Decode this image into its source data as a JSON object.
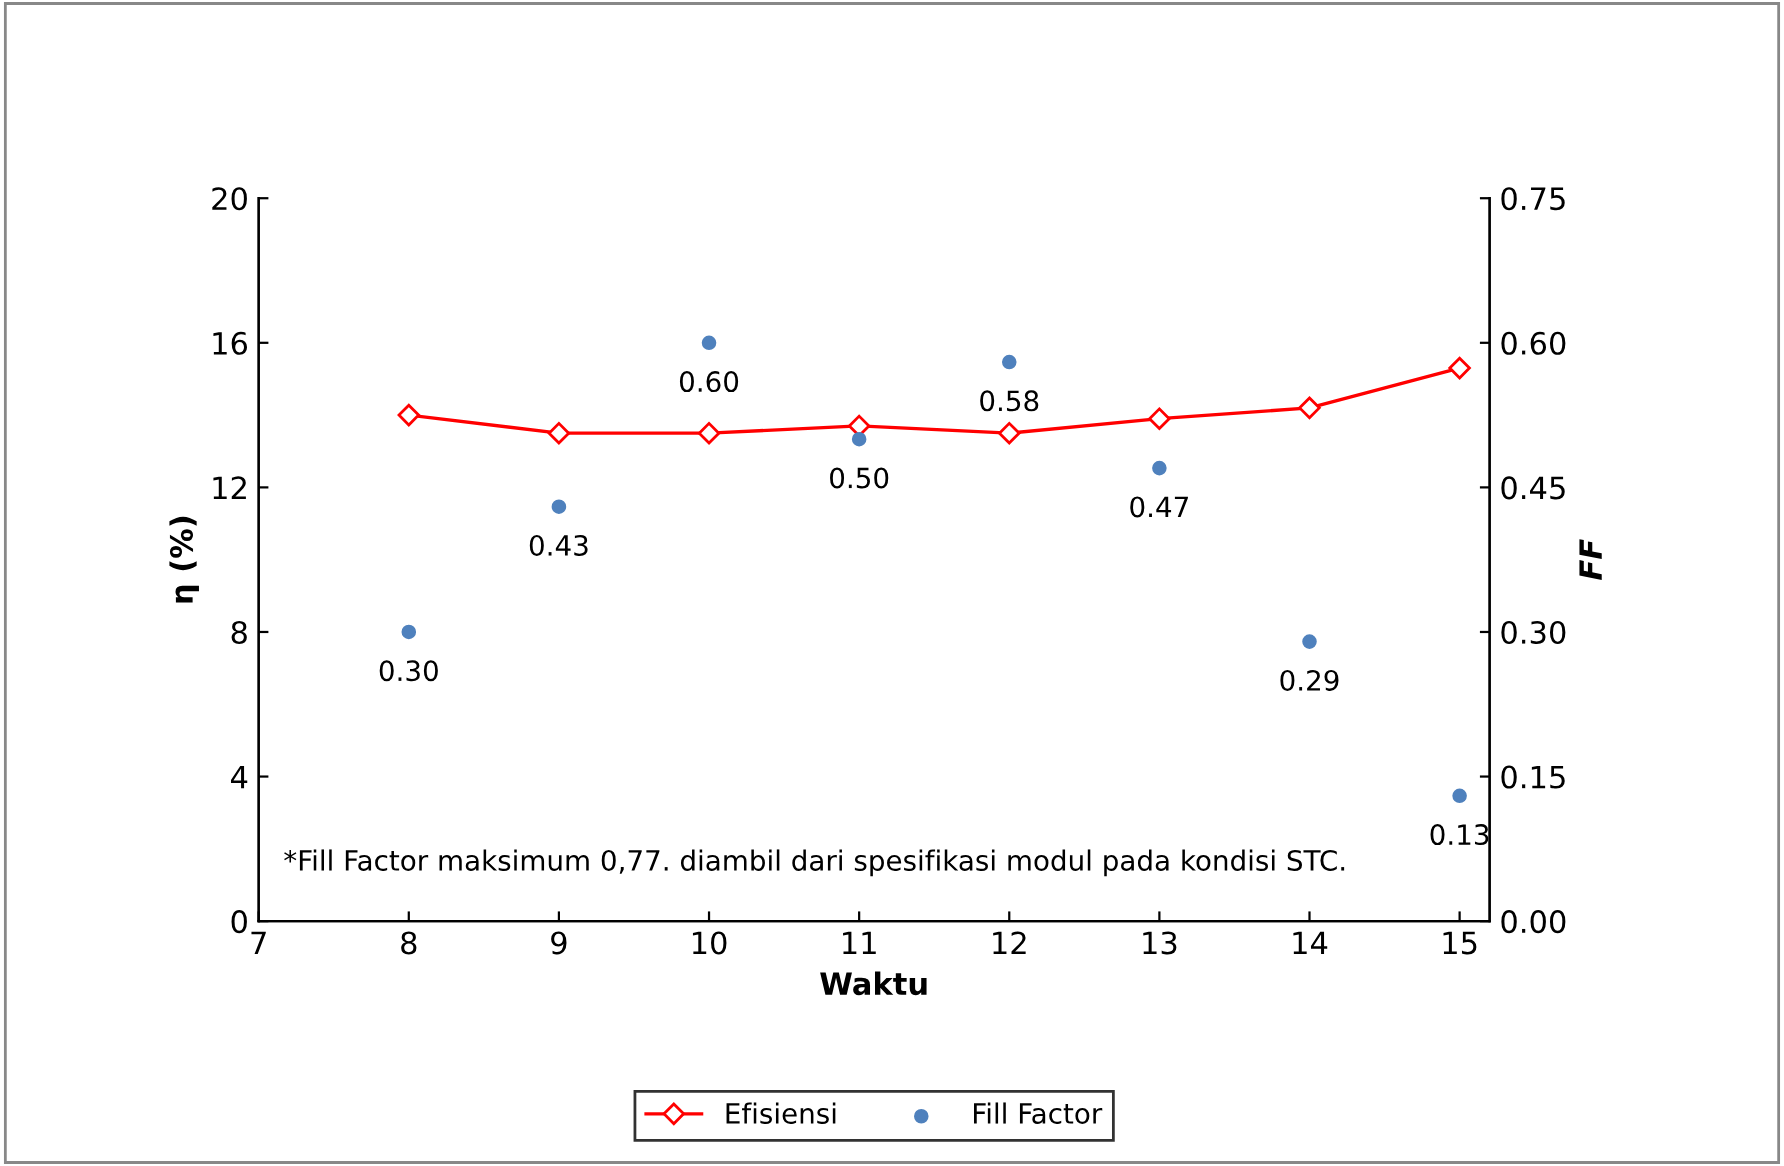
{
  "chart_data": {
    "type": "line",
    "xlabel": "Waktu",
    "ylabel": "η (%)",
    "y2label": "FF",
    "x": [
      8,
      9,
      10,
      11,
      12,
      13,
      14,
      15
    ],
    "xlim": [
      7,
      15.2
    ],
    "xticks": [
      7,
      8,
      9,
      10,
      11,
      12,
      13,
      14,
      15
    ],
    "ylim": [
      0,
      20
    ],
    "yticks": [
      0,
      4,
      8,
      12,
      16,
      20
    ],
    "y2lim": [
      0,
      0.75
    ],
    "y2ticks": [
      {
        "value": 0,
        "label": "0.00"
      },
      {
        "value": 0.15,
        "label": "0.15"
      },
      {
        "value": 0.3,
        "label": "0.30"
      },
      {
        "value": 0.45,
        "label": "0.45"
      },
      {
        "value": 0.6,
        "label": "0.60"
      },
      {
        "value": 0.75,
        "label": "0.75"
      }
    ],
    "series": [
      {
        "name": "Efisiensi",
        "color": "#ff0000",
        "marker": "diamond",
        "values": [
          14.0,
          13.5,
          13.5,
          13.7,
          13.5,
          13.9,
          14.2,
          15.3
        ]
      },
      {
        "name": "Fill Factor",
        "type": "scatter",
        "axis": "y2",
        "color": "#4f81bd",
        "marker": "circle",
        "values": [
          0.3,
          0.43,
          0.6,
          0.5,
          0.58,
          0.47,
          0.29,
          0.13
        ],
        "value_labels": [
          "0.30",
          "0.43",
          "0.60",
          "0.50",
          "0.58",
          "0.47",
          "0.29",
          "0.13"
        ]
      }
    ],
    "annotations": [
      "*Fill Factor maksimum 0,77. diambil dari spesifikasi modul pada kondisi STC."
    ],
    "grid": false,
    "legend": "bottom"
  }
}
